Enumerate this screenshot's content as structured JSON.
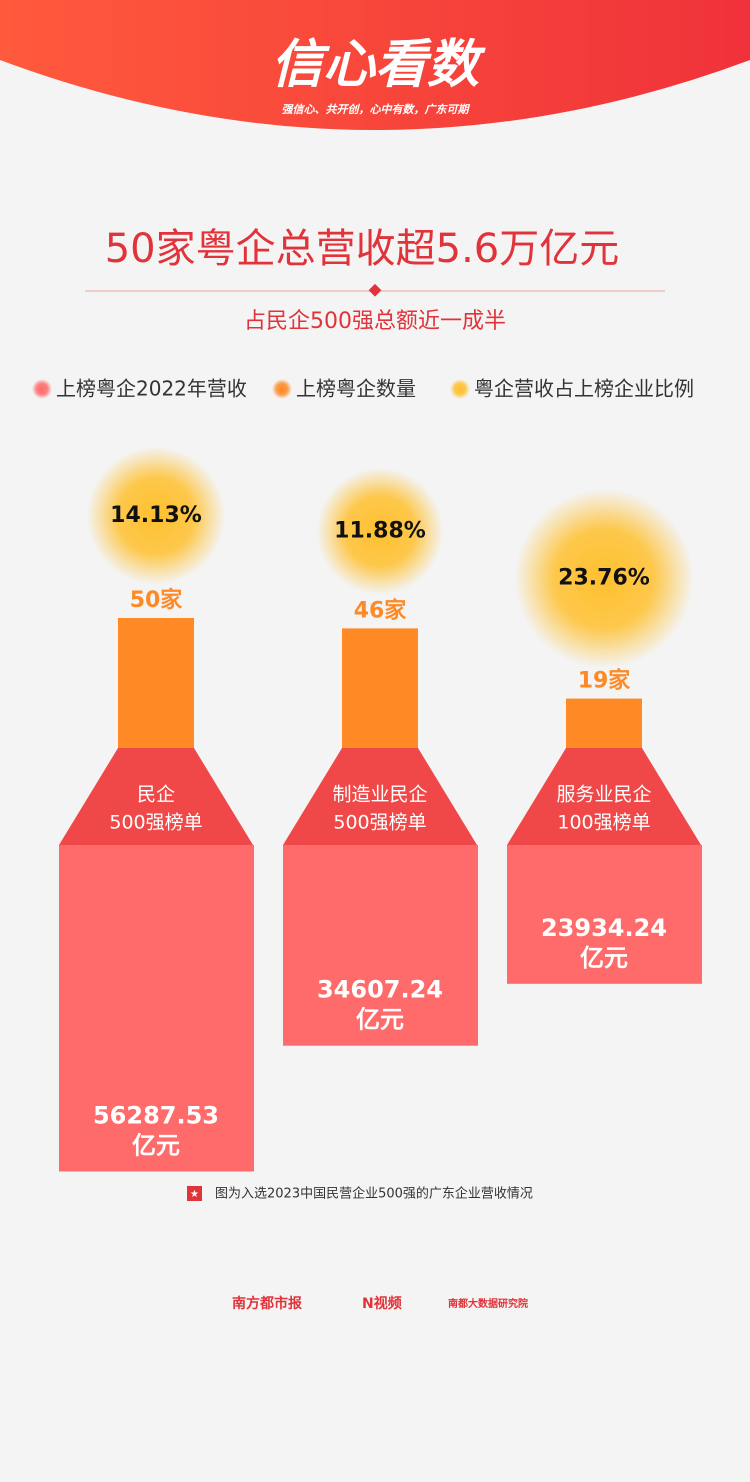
{
  "header": {
    "logo": "信心看数",
    "slogan": "强信心、共开创，心中有数，广东可期"
  },
  "chart_data": {
    "type": "bottle",
    "title": "50家粤企总营收超5.6万亿元",
    "subtitle": "占民企500强总额近一成半",
    "categories": [
      [
        "民企",
        "500强榜单"
      ],
      [
        "制造业民企",
        "500强榜单"
      ],
      [
        "服务业民企",
        "100强榜单"
      ]
    ],
    "series": [
      {
        "name": "上榜粤企2022年营收",
        "color": "#ff6b6b",
        "values": [
          56287.53,
          34607.24,
          23934.24
        ],
        "value_labels": [
          [
            "56287.53",
            "亿元"
          ],
          [
            "34607.24",
            "亿元"
          ],
          [
            "23934.24",
            "亿元"
          ]
        ]
      },
      {
        "name": "上榜粤企数量",
        "color": "#ff8a25",
        "values": [
          50,
          46,
          19
        ],
        "value_labels": [
          "50家",
          "46家",
          "19家"
        ]
      },
      {
        "name": "粤企营收占上榜企业比例",
        "color": "#ffc02e",
        "values": [
          14.13,
          11.88,
          23.76
        ],
        "value_labels": [
          "14.13%",
          "11.88%",
          "23.76%"
        ]
      }
    ],
    "note": "图为入选2023中国民营企业500强的广东企业营收情况"
  },
  "footer": {
    "logos": [
      "南方都市报",
      "N视频",
      "南都大数据研究院"
    ]
  }
}
